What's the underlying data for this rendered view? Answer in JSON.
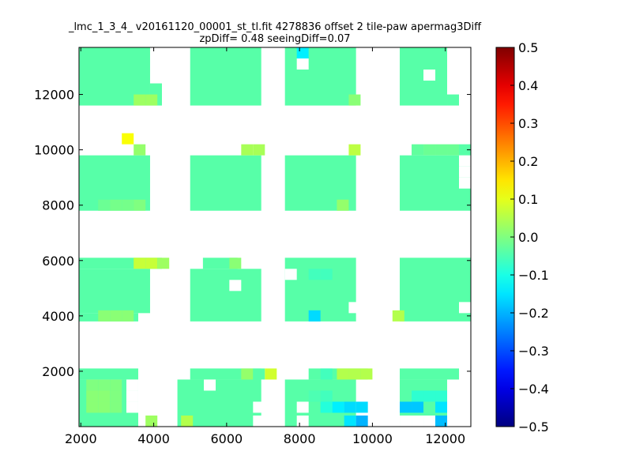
{
  "chart_data": {
    "type": "heatmap",
    "title": "_lmc_1_3_4_ v20161120_00001_st_tl.fit 4278836 offset 2 tile-paw apermag3Diff",
    "subtitle": "zpDiff= 0.48 seeingDiff=0.07",
    "xlabel": "",
    "ylabel": "",
    "xlim": [
      1950,
      12700
    ],
    "ylim": [
      0,
      13700
    ],
    "x_ticks": [
      "2000",
      "4000",
      "6000",
      "8000",
      "10000",
      "12000"
    ],
    "y_ticks": [
      "2000",
      "4000",
      "6000",
      "8000",
      "10000",
      "12000"
    ],
    "colorbar": {
      "colormap": "jet",
      "vmin": -0.5,
      "vmax": 0.5,
      "ticks": [
        "0.5",
        "0.4",
        "0.3",
        "0.2",
        "0.1",
        "0.0",
        "−0.1",
        "−0.2",
        "−0.3",
        "−0.4",
        "−0.5"
      ]
    },
    "cell_width": 325,
    "cell_height": 400,
    "default_value": -0.04,
    "blocks": [
      {
        "x": [
          1950,
          3900
        ],
        "y": [
          11600,
          13700
        ]
      },
      {
        "x": [
          3900,
          4225
        ],
        "y": [
          11600,
          12400
        ]
      },
      {
        "x": [
          5000,
          6950
        ],
        "y": [
          11600,
          13700
        ]
      },
      {
        "x": [
          7600,
          9550
        ],
        "y": [
          11600,
          13700
        ]
      },
      {
        "x": [
          10750,
          12050
        ],
        "y": [
          11600,
          13700
        ]
      },
      {
        "x": [
          12050,
          12375
        ],
        "y": [
          11600,
          12000
        ]
      },
      {
        "x": [
          1950,
          3900
        ],
        "y": [
          7800,
          9800
        ]
      },
      {
        "x": [
          5000,
          6950
        ],
        "y": [
          7800,
          9800
        ]
      },
      {
        "x": [
          7600,
          9550
        ],
        "y": [
          7800,
          9800
        ]
      },
      {
        "x": [
          10750,
          12700
        ],
        "y": [
          7800,
          9800
        ]
      },
      {
        "x": [
          1950,
          4225
        ],
        "y": [
          5700,
          6100
        ]
      },
      {
        "x": [
          1950,
          3900
        ],
        "y": [
          4100,
          5700
        ]
      },
      {
        "x": [
          1950,
          3575
        ],
        "y": [
          3800,
          4100
        ]
      },
      {
        "x": [
          5350,
          6300
        ],
        "y": [
          5700,
          6100
        ]
      },
      {
        "x": [
          5000,
          6950
        ],
        "y": [
          3800,
          5700
        ]
      },
      {
        "x": [
          7600,
          9550
        ],
        "y": [
          3800,
          6100
        ]
      },
      {
        "x": [
          10750,
          12700
        ],
        "y": [
          3800,
          6100
        ]
      },
      {
        "x": [
          1950,
          3575
        ],
        "y": [
          1700,
          2100
        ]
      },
      {
        "x": [
          1950,
          3575
        ],
        "y": [
          0,
          1700
        ]
      },
      {
        "x": [
          4650,
          6950
        ],
        "y": [
          0,
          1700
        ]
      },
      {
        "x": [
          5000,
          6950
        ],
        "y": [
          1700,
          2100
        ]
      },
      {
        "x": [
          7600,
          9550
        ],
        "y": [
          0,
          1700
        ]
      },
      {
        "x": [
          8250,
          9875
        ],
        "y": [
          1700,
          2100
        ]
      },
      {
        "x": [
          10750,
          12050
        ],
        "y": [
          0,
          1700
        ]
      },
      {
        "x": [
          10750,
          12375
        ],
        "y": [
          1700,
          2100
        ]
      }
    ],
    "cells": [
      {
        "x": 3125,
        "y": 10200,
        "v": 0.12
      },
      {
        "x": 3450,
        "y": 9800,
        "v": 0.02
      },
      {
        "x": 6400,
        "y": 9800,
        "v": 0.04
      },
      {
        "x": 6725,
        "y": 9800,
        "v": 0.04
      },
      {
        "x": 9350,
        "y": 9800,
        "v": 0.06
      },
      {
        "x": 11075,
        "y": 9800,
        "v": -0.03
      },
      {
        "x": 11400,
        "y": 9800,
        "v": -0.02
      },
      {
        "x": 11725,
        "y": 9800,
        "v": -0.02
      },
      {
        "x": 12050,
        "y": 9800,
        "v": -0.02
      },
      {
        "x": 12375,
        "y": 9800,
        "v": -0.04
      },
      {
        "x": 3450,
        "y": 11600,
        "v": 0.03
      },
      {
        "x": 3775,
        "y": 11600,
        "v": 0.03
      },
      {
        "x": 9350,
        "y": 11600,
        "v": 0.01
      },
      {
        "x": 2475,
        "y": 7800,
        "v": -0.02
      },
      {
        "x": 2800,
        "y": 7800,
        "v": -0.01
      },
      {
        "x": 3125,
        "y": 7800,
        "v": -0.01
      },
      {
        "x": 3450,
        "y": 7800,
        "v": 0.0
      },
      {
        "x": 9025,
        "y": 7800,
        "v": 0.02
      },
      {
        "x": 3450,
        "y": 5700,
        "v": 0.07
      },
      {
        "x": 3775,
        "y": 5700,
        "v": 0.07
      },
      {
        "x": 4100,
        "y": 5700,
        "v": 0.03
      },
      {
        "x": 6075,
        "y": 5700,
        "v": 0.01
      },
      {
        "x": 8250,
        "y": 5300,
        "v": -0.06
      },
      {
        "x": 8575,
        "y": 5300,
        "v": -0.06
      },
      {
        "x": 2475,
        "y": 3800,
        "v": 0.01
      },
      {
        "x": 2800,
        "y": 3800,
        "v": 0.01
      },
      {
        "x": 3125,
        "y": 3800,
        "v": 0.01
      },
      {
        "x": 8250,
        "y": 3800,
        "v": -0.16
      },
      {
        "x": 10550,
        "y": 3800,
        "v": 0.05
      },
      {
        "x": 6400,
        "y": 1700,
        "v": 0.02
      },
      {
        "x": 6725,
        "y": 1700,
        "v": -0.04
      },
      {
        "x": 7050,
        "y": 1700,
        "v": 0.08
      },
      {
        "x": 8575,
        "y": 1700,
        "v": -0.06
      },
      {
        "x": 9025,
        "y": 1700,
        "v": 0.05
      },
      {
        "x": 9350,
        "y": 1700,
        "v": 0.05
      },
      {
        "x": 9675,
        "y": 1700,
        "v": 0.05
      },
      {
        "x": 2150,
        "y": 1300,
        "v": 0.0
      },
      {
        "x": 2475,
        "y": 1300,
        "v": 0.0
      },
      {
        "x": 2800,
        "y": 1300,
        "v": 0.0
      },
      {
        "x": 2150,
        "y": 900,
        "v": 0.01
      },
      {
        "x": 2475,
        "y": 900,
        "v": 0.01
      },
      {
        "x": 2800,
        "y": 900,
        "v": 0.0
      },
      {
        "x": 2150,
        "y": 500,
        "v": 0.01
      },
      {
        "x": 2475,
        "y": 500,
        "v": 0.01
      },
      {
        "x": 2800,
        "y": 500,
        "v": 0.0
      },
      {
        "x": 3775,
        "y": 0,
        "v": 0.03
      },
      {
        "x": 4750,
        "y": 0,
        "v": 0.05
      },
      {
        "x": 8250,
        "y": 900,
        "v": -0.05
      },
      {
        "x": 8575,
        "y": 900,
        "v": -0.06
      },
      {
        "x": 8575,
        "y": 500,
        "v": -0.09
      },
      {
        "x": 8900,
        "y": 500,
        "v": -0.14
      },
      {
        "x": 9225,
        "y": 500,
        "v": -0.16
      },
      {
        "x": 9550,
        "y": 500,
        "v": -0.16
      },
      {
        "x": 9225,
        "y": 0,
        "v": -0.15
      },
      {
        "x": 9550,
        "y": 0,
        "v": -0.2
      },
      {
        "x": 11075,
        "y": 900,
        "v": -0.08
      },
      {
        "x": 11400,
        "y": 900,
        "v": -0.08
      },
      {
        "x": 11725,
        "y": 900,
        "v": -0.08
      },
      {
        "x": 10750,
        "y": 500,
        "v": -0.18
      },
      {
        "x": 11075,
        "y": 500,
        "v": -0.18
      },
      {
        "x": 11725,
        "y": 500,
        "v": -0.15
      },
      {
        "x": 11725,
        "y": 0,
        "v": -0.19
      },
      {
        "x": 7925,
        "y": 13300,
        "v": -0.14
      }
    ],
    "holes": [
      {
        "x": 7925,
        "y": 12900
      },
      {
        "x": 11400,
        "y": 12500
      },
      {
        "x": 6075,
        "y": 4900
      },
      {
        "x": 7600,
        "y": 5300
      },
      {
        "x": 9675,
        "y": 9400
      },
      {
        "x": 9675,
        "y": 8600
      },
      {
        "x": 9675,
        "y": 8200
      },
      {
        "x": 9350,
        "y": 4100
      },
      {
        "x": 12375,
        "y": 9400
      },
      {
        "x": 12375,
        "y": 9000
      },
      {
        "x": 12375,
        "y": 8600
      },
      {
        "x": 12375,
        "y": 4100
      },
      {
        "x": 3250,
        "y": 1300
      },
      {
        "x": 3250,
        "y": 900
      },
      {
        "x": 3250,
        "y": 500
      },
      {
        "x": 5375,
        "y": 1300
      },
      {
        "x": 6725,
        "y": 500
      },
      {
        "x": 6725,
        "y": 0
      },
      {
        "x": 7925,
        "y": 500
      },
      {
        "x": 7925,
        "y": 0
      },
      {
        "x": 10750,
        "y": 0
      },
      {
        "x": 11075,
        "y": 0
      },
      {
        "x": 11400,
        "y": 0
      }
    ]
  }
}
